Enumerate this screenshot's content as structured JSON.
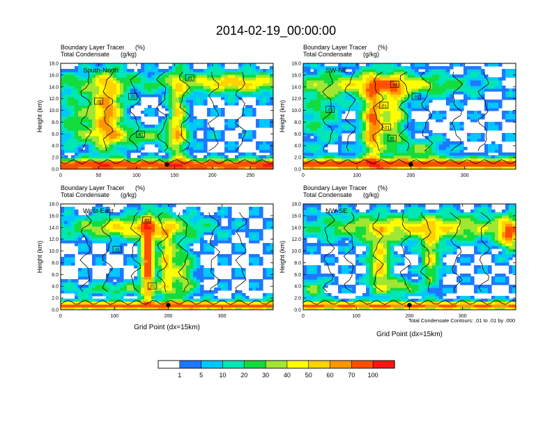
{
  "figure": {
    "title": "2014-02-19_00:00:00",
    "subtitle_line1": "Boundary Layer Tracer",
    "subtitle_unit1": "(%)",
    "subtitle_line2": "Total Condensate",
    "subtitle_unit2": "(g/kg)",
    "ylabel": "Height (km)",
    "xlabel": "Grid Point (dx=15km)",
    "contour_note": "Total Condensate Contours: .01 to .01 by .000",
    "contour_label": ".01"
  },
  "colorbar": {
    "colors": [
      "#ffffff",
      "#1e78ff",
      "#00c8ff",
      "#00e6b4",
      "#14dc3c",
      "#a0e632",
      "#ffff00",
      "#ffd200",
      "#ff9600",
      "#ff5000",
      "#ff1414"
    ],
    "labels": [
      "1",
      "5",
      "10",
      "20",
      "30",
      "40",
      "50",
      "60",
      "70",
      "100"
    ]
  },
  "chart_data": [
    {
      "type": "heatmap",
      "panel_label": "South-North",
      "xlim": [
        0,
        280
      ],
      "xticks": [
        "0",
        "50",
        "100",
        "150",
        "200",
        "250"
      ],
      "xtick_values": [
        0,
        50,
        100,
        150,
        200,
        250
      ],
      "ylim": [
        0,
        18
      ],
      "yticks": [
        "0.0",
        "2.0",
        "4.0",
        "6.0",
        "8.0",
        "10.0",
        "12.0",
        "14.0",
        "16.0",
        "18.0"
      ],
      "marker_x": 140,
      "contour_labels": [
        {
          "x": 170,
          "y": 15.5
        },
        {
          "x": 50,
          "y": 11.5
        },
        {
          "x": 95,
          "y": 12.3
        },
        {
          "x": 105,
          "y": 5.9
        }
      ]
    },
    {
      "type": "heatmap",
      "panel_label": "SW-NE",
      "xlim": [
        0,
        395
      ],
      "xticks": [
        "0",
        "100",
        "200",
        "300"
      ],
      "xtick_values": [
        0,
        100,
        200,
        300
      ],
      "ylim": [
        0,
        18
      ],
      "yticks": [
        "0.0",
        "2.0",
        "4.0",
        "6.0",
        "8.0",
        "10.0",
        "12.0",
        "14.0",
        "16.0",
        "18.0"
      ],
      "marker_x": 200,
      "contour_labels": [
        {
          "x": 170,
          "y": 14.4
        },
        {
          "x": 210,
          "y": 12.3
        },
        {
          "x": 150,
          "y": 10.8
        },
        {
          "x": 50,
          "y": 10.1
        },
        {
          "x": 155,
          "y": 7.1
        },
        {
          "x": 165,
          "y": 5.2
        }
      ]
    },
    {
      "type": "heatmap",
      "panel_label": "West-East",
      "xlim": [
        0,
        395
      ],
      "xticks": [
        "0",
        "100",
        "200",
        "300"
      ],
      "xtick_values": [
        0,
        100,
        200,
        300
      ],
      "ylim": [
        0,
        18
      ],
      "yticks": [
        "0.0",
        "2.0",
        "4.0",
        "6.0",
        "8.0",
        "10.0",
        "12.0",
        "14.0",
        "16.0",
        "18.0"
      ],
      "marker_x": 200,
      "contour_labels": [
        {
          "x": 160,
          "y": 15.2
        },
        {
          "x": 105,
          "y": 10.2
        },
        {
          "x": 170,
          "y": 4.0
        }
      ]
    },
    {
      "type": "heatmap",
      "panel_label": "NW-SE",
      "xlim": [
        0,
        400
      ],
      "xticks": [
        "0",
        "100",
        "200",
        "300"
      ],
      "xtick_values": [
        0,
        100,
        200,
        300
      ],
      "ylim": [
        0,
        18
      ],
      "yticks": [
        "0.0",
        "2.0",
        "4.0",
        "6.0",
        "8.0",
        "10.0",
        "12.0",
        "14.0",
        "16.0",
        "18.0"
      ],
      "marker_x": 200,
      "contour_labels": []
    }
  ]
}
